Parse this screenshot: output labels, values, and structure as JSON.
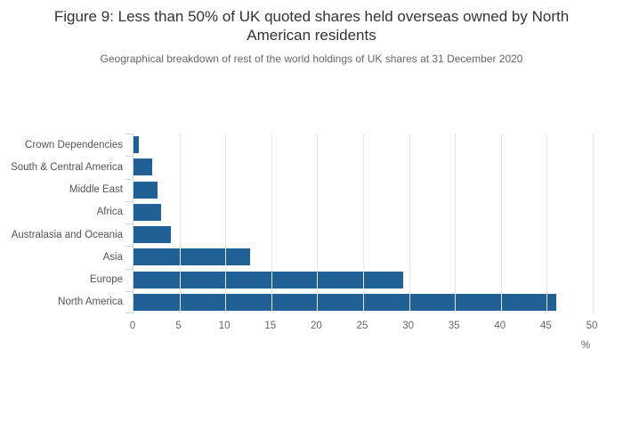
{
  "figure": {
    "title": "Figure 9: Less than 50% of UK quoted shares held overseas owned by North American residents",
    "subtitle": "Geographical breakdown of rest of the world holdings of UK shares at 31 December 2020"
  },
  "chart_data": {
    "type": "bar",
    "orientation": "horizontal",
    "title": "Figure 9: Less than 50% of UK quoted shares held overseas owned by North American residents",
    "subtitle": "Geographical breakdown of rest of the world holdings of UK shares at 31 December 2020",
    "categories": [
      "Crown Dependencies",
      "South & Central America",
      "Middle East",
      "Africa",
      "Australasia and Oceania",
      "Asia",
      "Europe",
      "North America"
    ],
    "values": [
      0.6,
      2.0,
      2.6,
      3.0,
      4.1,
      12.7,
      29.4,
      46.0
    ],
    "xlabel": "%",
    "ylabel": "",
    "xlim": [
      0,
      50
    ],
    "xticks": [
      0,
      5,
      10,
      15,
      20,
      25,
      30,
      35,
      40,
      45,
      50
    ],
    "grid": "vertical",
    "legend": "none"
  },
  "colors": {
    "bar": "#206095",
    "gridline": "#e6e6e6",
    "axis_line": "#ccd6eb",
    "title_text": "#333333",
    "subtitle_text": "#666666",
    "category_label_text": "#555555",
    "tick_label_text": "#666666"
  }
}
